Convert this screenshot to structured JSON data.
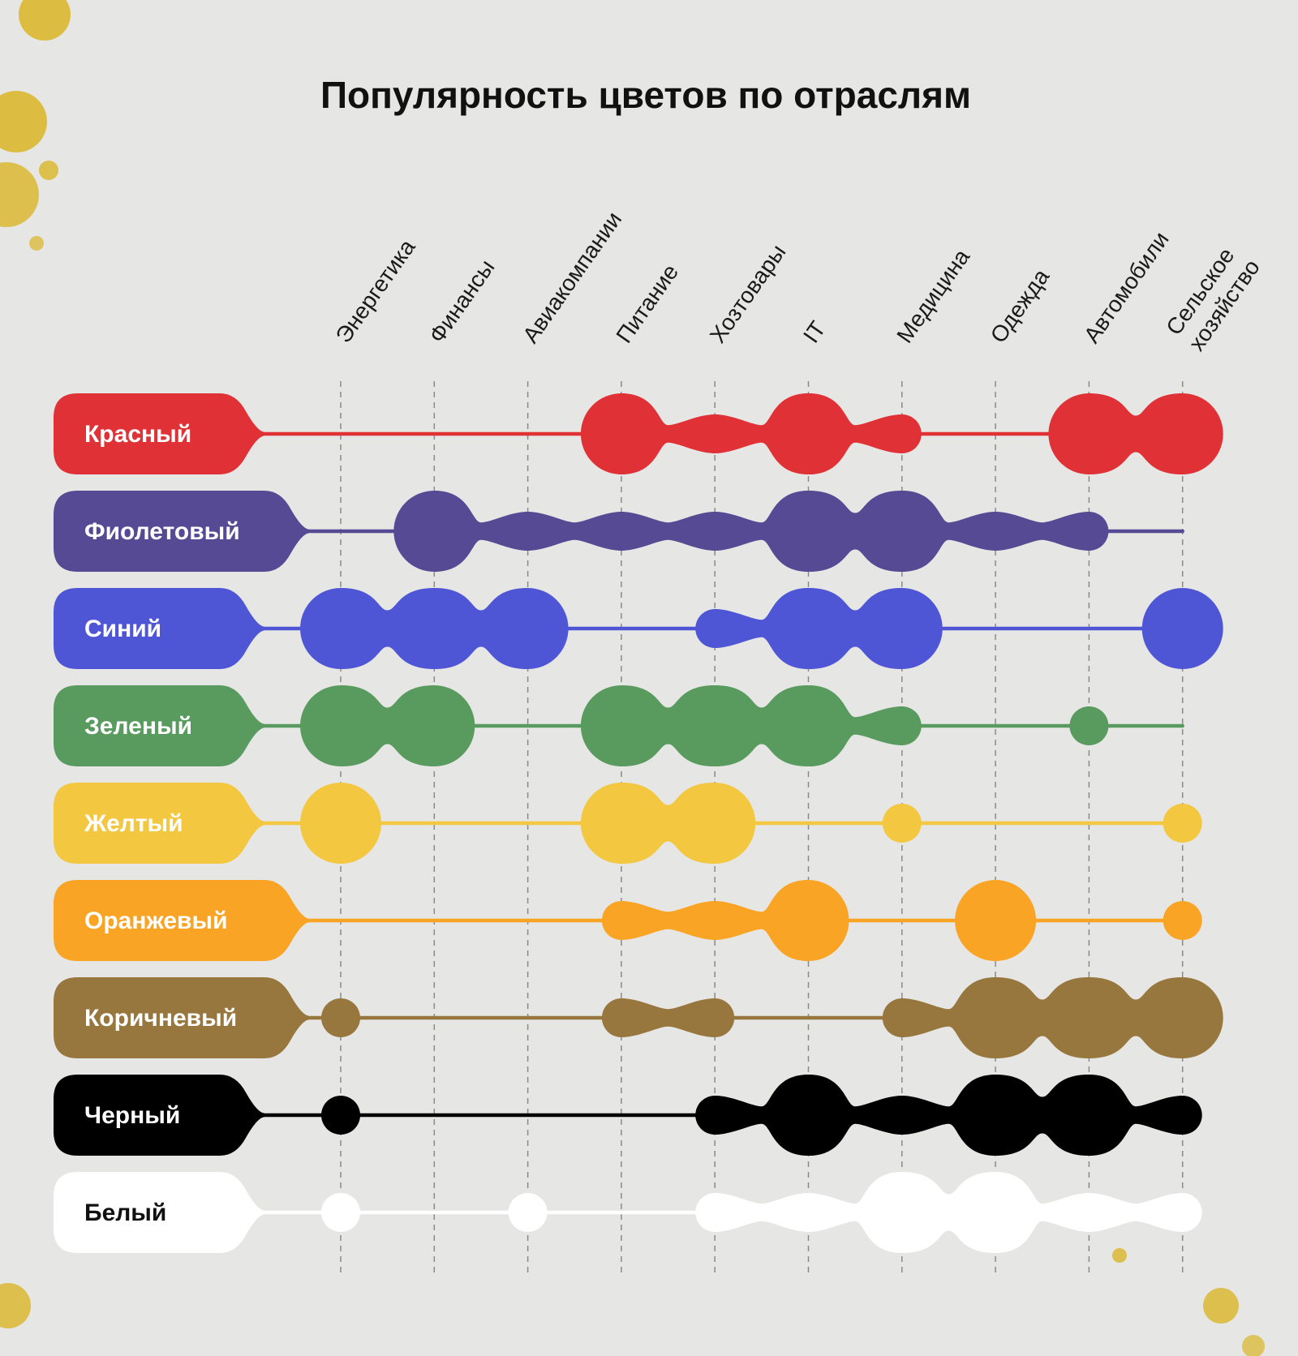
{
  "chart_data": {
    "type": "bubble-matrix",
    "title": "Популярность цветов по отраслям",
    "columns": [
      "Энергетика",
      "Финансы",
      "Авиакомпании",
      "Питание",
      "Хозтовары",
      "IT",
      "Медицина",
      "Одежда",
      "Автомобили",
      "Сельское хозяйство"
    ],
    "column_label_lines": [
      [
        "Энергетика"
      ],
      [
        "Финансы"
      ],
      [
        "Авиакомпании"
      ],
      [
        "Питание"
      ],
      [
        "Хозтовары"
      ],
      [
        "IT"
      ],
      [
        "Медицина"
      ],
      [
        "Одежда"
      ],
      [
        "Автомобили"
      ],
      [
        "Сельское",
        "хозяйство"
      ]
    ],
    "value_scale": "0 = none, 1 = small, 2 = medium, 3 = large",
    "rows": [
      {
        "name": "Красный",
        "color": "#e03236",
        "text_color": "#ffffff",
        "values": [
          0,
          0,
          0,
          3,
          1,
          3,
          1,
          0,
          3,
          3
        ]
      },
      {
        "name": "Фиолетовый",
        "color": "#554a93",
        "text_color": "#ffffff",
        "values": [
          0,
          3,
          1,
          1,
          1,
          3,
          3,
          1,
          1,
          0
        ]
      },
      {
        "name": "Синий",
        "color": "#4f56d6",
        "text_color": "#ffffff",
        "values": [
          3,
          3,
          3,
          0,
          1,
          3,
          3,
          0,
          0,
          3
        ]
      },
      {
        "name": "Зеленый",
        "color": "#599b5f",
        "text_color": "#ffffff",
        "values": [
          3,
          3,
          0,
          3,
          3,
          3,
          1,
          0,
          1,
          0
        ]
      },
      {
        "name": "Желтый",
        "color": "#f3c73f",
        "text_color": "#ffffff",
        "values": [
          3,
          0,
          0,
          3,
          3,
          0,
          1,
          0,
          0,
          1
        ]
      },
      {
        "name": "Оранжевый",
        "color": "#f9a424",
        "text_color": "#ffffff",
        "values": [
          0,
          0,
          0,
          1,
          1,
          3,
          0,
          3,
          0,
          1
        ]
      },
      {
        "name": "Коричневый",
        "color": "#98773f",
        "text_color": "#ffffff",
        "values": [
          1,
          0,
          0,
          1,
          1,
          0,
          1,
          3,
          3,
          3
        ]
      },
      {
        "name": "Черный",
        "color": "#000000",
        "text_color": "#ffffff",
        "values": [
          1,
          0,
          0,
          0,
          1,
          3,
          1,
          3,
          3,
          1
        ]
      },
      {
        "name": "Белый",
        "color": "#ffffff",
        "text_color": "#111111",
        "values": [
          1,
          0,
          1,
          0,
          1,
          1,
          3,
          3,
          1,
          1
        ]
      }
    ]
  }
}
